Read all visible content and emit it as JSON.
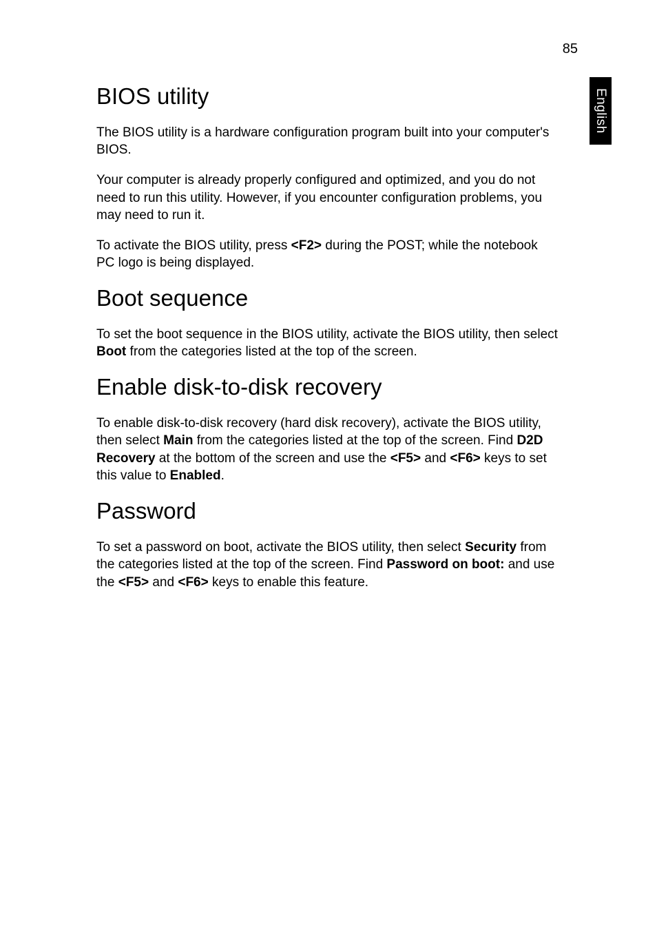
{
  "page": {
    "number": "85",
    "side_tab": "English"
  },
  "sections": {
    "bios": {
      "title": "BIOS utility",
      "p1": "The BIOS utility is a hardware configuration program built into your computer's BIOS.",
      "p2": "Your computer is already properly configured and optimized, and you do not need to run this utility. However, if you encounter configuration problems, you may need to run it.",
      "p3_a": "To activate the BIOS utility, press ",
      "p3_key": "<F2>",
      "p3_b": " during the POST; while the notebook PC logo is being displayed."
    },
    "boot": {
      "title": "Boot sequence",
      "p1_a": "To set the boot sequence in the BIOS utility, activate the BIOS utility, then select ",
      "p1_bold": "Boot",
      "p1_b": " from the categories listed at the top of the screen."
    },
    "d2d": {
      "title": "Enable disk-to-disk recovery",
      "p1_a": "To enable disk-to-disk recovery (hard disk recovery), activate the BIOS utility, then select ",
      "p1_main": "Main",
      "p1_b": " from the categories listed at the top of the screen. Find ",
      "p1_d2d": "D2D Recovery",
      "p1_c": " at the bottom of the screen and use the ",
      "p1_f5": "<F5>",
      "p1_and": " and ",
      "p1_f6": "<F6>",
      "p1_d": " keys to set this value to ",
      "p1_enabled": "Enabled",
      "p1_e": "."
    },
    "password": {
      "title": "Password",
      "p1_a": "To set a password on boot, activate the BIOS utility, then select ",
      "p1_sec": "Security",
      "p1_b": " from the categories listed at the top of the screen. Find ",
      "p1_pob": "Password on boot:",
      "p1_c": " and use the ",
      "p1_f5": "<F5>",
      "p1_and": " and ",
      "p1_f6": "<F6>",
      "p1_d": " keys to enable this feature."
    }
  }
}
